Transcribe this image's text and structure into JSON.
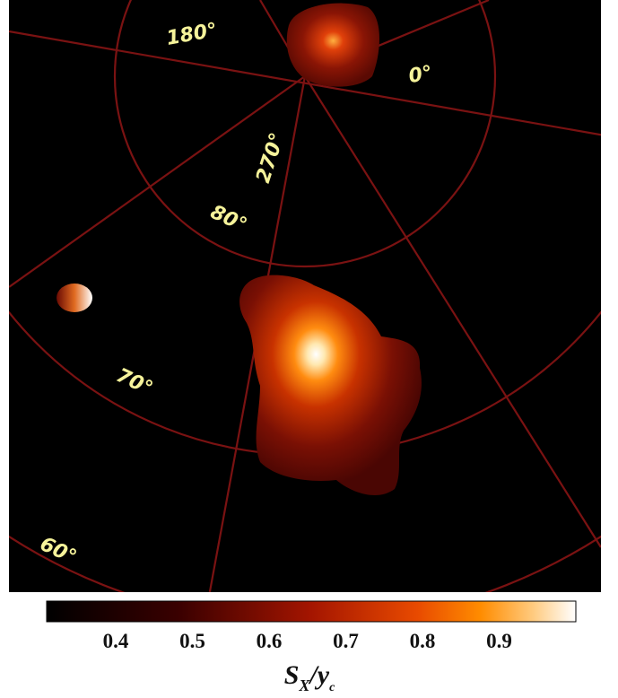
{
  "map": {
    "graticule_labels": [
      "180°",
      "0°",
      "270°",
      "80°",
      "70°",
      "60°"
    ],
    "colorbar": {
      "range": [
        0.31,
        1.0
      ],
      "ticks": [
        0.4,
        0.5,
        0.6,
        0.7,
        0.8,
        0.9
      ],
      "label": {
        "main": "S",
        "main_sub": "X",
        "denominator": "/y",
        "denominator_sub": "c"
      }
    }
  }
}
